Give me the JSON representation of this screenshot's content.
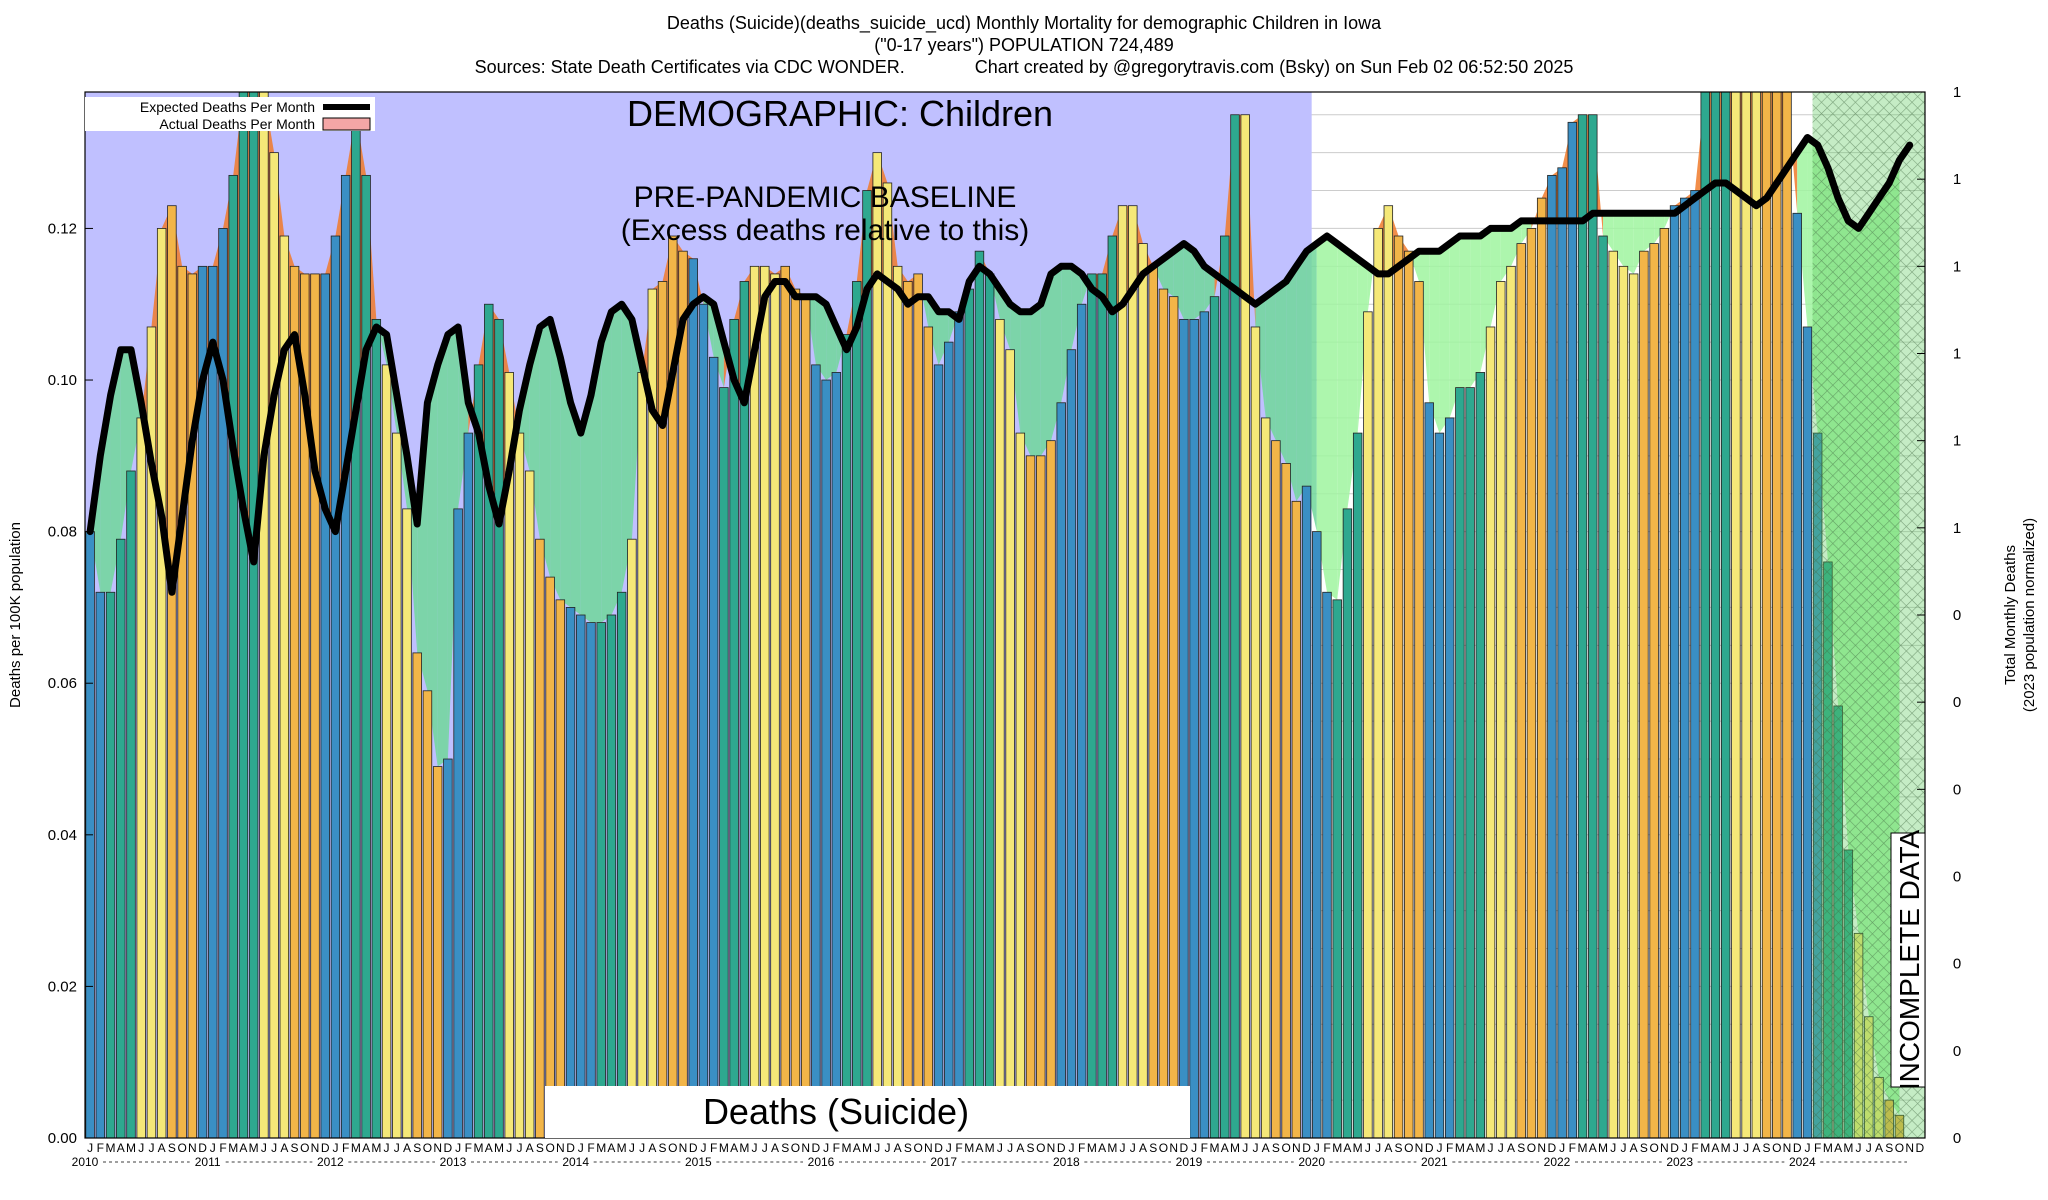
{
  "header": {
    "title_line1": "Deaths (Suicide)(deaths_suicide_ucd) Monthly Mortality for demographic Children in Iowa",
    "title_line2": "(\"0-17 years\") POPULATION 724,489",
    "title_line3": "Sources: State Death Certificates via CDC WONDER.              Chart created by @gregorytravis.com (Bsky) on Sun Feb 02 06:52:50 2025"
  },
  "colors": {
    "baseline_band": "#c0c0ff",
    "excess": "#f07a2a",
    "deficit_light": "#9ff59f",
    "deficit_dark": "#70d79a",
    "expected_line": "#000000",
    "actual_fill": "#f4a6a6",
    "bar_winter": "#3a8fc4",
    "bar_spring": "#2ea88f",
    "bar_summer": "#f5e878",
    "bar_fall": "#f2b548"
  },
  "chart_data": {
    "type": "bar",
    "title": "Deaths (Suicide)(deaths_suicide_ucd) Monthly Mortality for demographic Children in Iowa",
    "ylabel": "Deaths per 100K population",
    "y2label_line1": "Total Monthly Deaths",
    "y2label_line2": "(2023 population normalized)",
    "ylim": [
      0,
      0.138
    ],
    "yticks": [
      "0.00",
      "0.02",
      "0.04",
      "0.06",
      "0.08",
      "0.10",
      "0.12"
    ],
    "y2ticks": [
      "0",
      "0",
      "0",
      "0",
      "0",
      "0",
      "0",
      "1",
      "1",
      "1",
      "1",
      "1",
      "1"
    ],
    "grid": true,
    "legend_position": "top-left",
    "legend": [
      {
        "label": "Expected Deaths Per Month",
        "style": "line"
      },
      {
        "label": "Actual Deaths Per Month",
        "style": "fill"
      }
    ],
    "month_letters": [
      "J",
      "F",
      "M",
      "A",
      "M",
      "J",
      "J",
      "A",
      "S",
      "O",
      "N",
      "D"
    ],
    "years": [
      "2010",
      "2011",
      "2012",
      "2013",
      "2014",
      "2015",
      "2016",
      "2017",
      "2018",
      "2019",
      "2020",
      "2021",
      "2022",
      "2023",
      "2024"
    ],
    "annotations": {
      "demographic": "DEMOGRAPHIC: Children",
      "baseline_line1": "PRE-PANDEMIC BASELINE",
      "baseline_line2": "(Excess deaths relative to this)",
      "cause": "Deaths (Suicide)",
      "incomplete": "INCOMPLETE DATA"
    },
    "actual": [
      0.08,
      0.072,
      0.072,
      0.079,
      0.088,
      0.095,
      0.107,
      0.12,
      0.123,
      0.115,
      0.114,
      0.115,
      0.115,
      0.12,
      0.127,
      0.138,
      0.138,
      0.138,
      0.13,
      0.119,
      0.115,
      0.114,
      0.114,
      0.114,
      0.119,
      0.127,
      0.135,
      0.127,
      0.108,
      0.102,
      0.093,
      0.083,
      0.064,
      0.059,
      0.049,
      0.05,
      0.083,
      0.093,
      0.102,
      0.11,
      0.108,
      0.101,
      0.093,
      0.088,
      0.079,
      0.074,
      0.071,
      0.07,
      0.069,
      0.068,
      0.068,
      0.069,
      0.072,
      0.079,
      0.101,
      0.112,
      0.113,
      0.119,
      0.117,
      0.116,
      0.11,
      0.103,
      0.099,
      0.108,
      0.113,
      0.115,
      0.115,
      0.114,
      0.115,
      0.112,
      0.111,
      0.102,
      0.1,
      0.101,
      0.106,
      0.113,
      0.125,
      0.13,
      0.126,
      0.115,
      0.113,
      0.114,
      0.107,
      0.102,
      0.105,
      0.109,
      0.112,
      0.117,
      0.114,
      0.108,
      0.104,
      0.093,
      0.09,
      0.09,
      0.092,
      0.097,
      0.104,
      0.11,
      0.114,
      0.114,
      0.119,
      0.123,
      0.123,
      0.118,
      0.115,
      0.112,
      0.111,
      0.108,
      0.108,
      0.109,
      0.111,
      0.119,
      0.135,
      0.135,
      0.107,
      0.095,
      0.092,
      0.089,
      0.084,
      0.086,
      0.08,
      0.072,
      0.071,
      0.083,
      0.093,
      0.109,
      0.12,
      0.123,
      0.119,
      0.117,
      0.113,
      0.097,
      0.093,
      0.095,
      0.099,
      0.099,
      0.101,
      0.107,
      0.113,
      0.115,
      0.118,
      0.12,
      0.124,
      0.127,
      0.128,
      0.134,
      0.135,
      0.135,
      0.119,
      0.117,
      0.115,
      0.114,
      0.117,
      0.118,
      0.12,
      0.123,
      0.124,
      0.125,
      0.138,
      0.138,
      0.138,
      0.138,
      0.138,
      0.138,
      0.138,
      0.138,
      0.138,
      0.122,
      0.107,
      0.093,
      0.076,
      0.057,
      0.038,
      0.027,
      0.016,
      0.008,
      0.005,
      0.003
    ],
    "expected": [
      0.08,
      0.09,
      0.098,
      0.104,
      0.104,
      0.097,
      0.089,
      0.082,
      0.072,
      0.082,
      0.092,
      0.1,
      0.105,
      0.1,
      0.091,
      0.083,
      0.076,
      0.09,
      0.098,
      0.104,
      0.106,
      0.098,
      0.088,
      0.083,
      0.08,
      0.088,
      0.096,
      0.104,
      0.107,
      0.106,
      0.098,
      0.09,
      0.081,
      0.097,
      0.102,
      0.106,
      0.107,
      0.097,
      0.093,
      0.086,
      0.081,
      0.088,
      0.096,
      0.102,
      0.107,
      0.108,
      0.103,
      0.097,
      0.093,
      0.098,
      0.105,
      0.109,
      0.11,
      0.108,
      0.102,
      0.096,
      0.094,
      0.101,
      0.108,
      0.11,
      0.111,
      0.11,
      0.105,
      0.1,
      0.097,
      0.104,
      0.111,
      0.113,
      0.113,
      0.111,
      0.111,
      0.111,
      0.11,
      0.107,
      0.104,
      0.107,
      0.112,
      0.114,
      0.113,
      0.112,
      0.11,
      0.111,
      0.111,
      0.109,
      0.109,
      0.108,
      0.113,
      0.115,
      0.114,
      0.112,
      0.11,
      0.109,
      0.109,
      0.11,
      0.114,
      0.115,
      0.115,
      0.114,
      0.112,
      0.111,
      0.109,
      0.11,
      0.112,
      0.114,
      0.115,
      0.116,
      0.117,
      0.118,
      0.117,
      0.115,
      0.114,
      0.113,
      0.112,
      0.111,
      0.11,
      0.111,
      0.112,
      0.113,
      0.115,
      0.117,
      0.118,
      0.119,
      0.118,
      0.117,
      0.116,
      0.115,
      0.114,
      0.114,
      0.115,
      0.116,
      0.117,
      0.117,
      0.117,
      0.118,
      0.119,
      0.119,
      0.119,
      0.12,
      0.12,
      0.12,
      0.121,
      0.121,
      0.121,
      0.121,
      0.121,
      0.121,
      0.121,
      0.122,
      0.122,
      0.122,
      0.122,
      0.122,
      0.122,
      0.122,
      0.122,
      0.122,
      0.123,
      0.124,
      0.125,
      0.126,
      0.126,
      0.125,
      0.124,
      0.123,
      0.124,
      0.126,
      0.128,
      0.13,
      0.132,
      0.131,
      0.128,
      0.124,
      0.121,
      0.12,
      0.122,
      0.124,
      0.126,
      0.129,
      0.131
    ],
    "baseline_band": {
      "start_index": 0,
      "end_index": 119
    },
    "incomplete_from_index": 169
  }
}
